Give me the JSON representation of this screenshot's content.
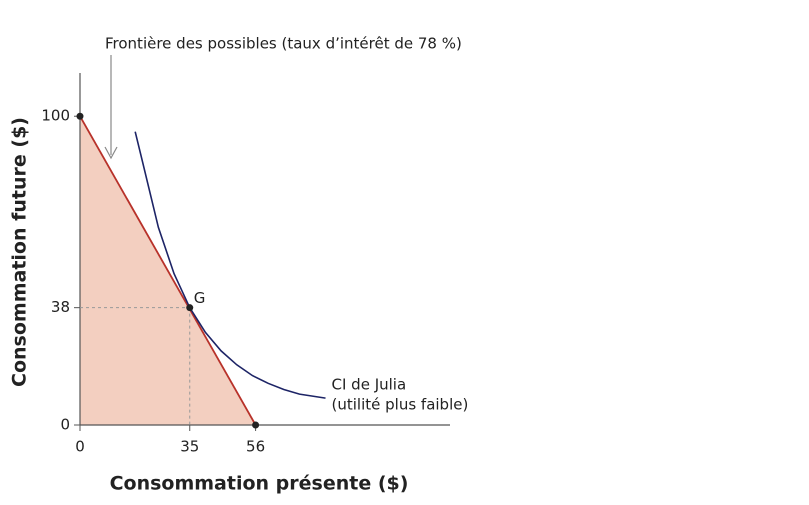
{
  "chart_data": {
    "type": "line",
    "xlabel": "Consommation présente ($)",
    "ylabel": "Consommation future ($)",
    "xlim": [
      0,
      118
    ],
    "ylim": [
      0,
      114
    ],
    "xticks": [
      0,
      35,
      56
    ],
    "yticks": [
      0,
      38,
      100
    ],
    "frontier": {
      "x": [
        0,
        56
      ],
      "y": [
        100,
        0
      ],
      "color": "#b8322a",
      "fill": "#f3cfc0",
      "annotation": "Frontière des possibles (taux d’intérêt de 78 %)"
    },
    "indifference_curve": {
      "label": [
        "CI de Julia",
        "(utilité plus faible)"
      ],
      "color": "#1d2466",
      "x": [
        17.6,
        20,
        25,
        30,
        35,
        40,
        45,
        50,
        55,
        60,
        65,
        70,
        78.3
      ],
      "y": [
        95,
        85,
        64,
        49,
        38,
        30,
        24,
        19.5,
        16,
        13.5,
        11.5,
        10,
        8.7
      ]
    },
    "point": {
      "label": "G",
      "x": 35,
      "y": 38
    }
  }
}
